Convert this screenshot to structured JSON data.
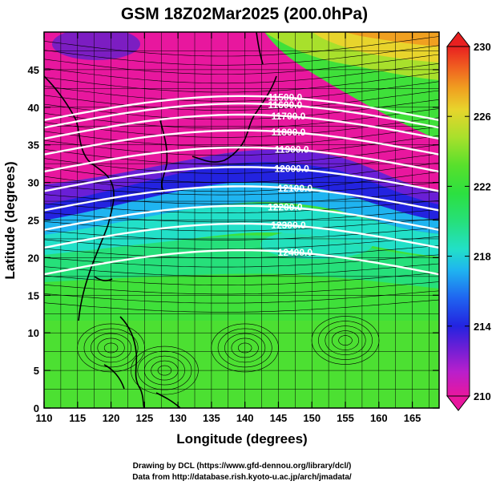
{
  "chart_data": {
    "type": "heatmap",
    "title": "GSM 18Z02Mar2025 (200.0hPa)",
    "xlabel": "Longitude (degrees)",
    "ylabel": "Latitude  (degrees)",
    "xlim": [
      110,
      169
    ],
    "ylim": [
      0,
      50
    ],
    "x_ticks": [
      "110",
      "115",
      "120",
      "125",
      "130",
      "135",
      "140",
      "145",
      "150",
      "155",
      "160",
      "165"
    ],
    "y_ticks": [
      "0",
      "5",
      "10",
      "15",
      "20",
      "25",
      "30",
      "35",
      "40",
      "45"
    ],
    "x_tick_values": [
      110,
      115,
      120,
      125,
      130,
      135,
      140,
      145,
      150,
      155,
      160,
      165
    ],
    "y_tick_values": [
      0,
      5,
      10,
      15,
      20,
      25,
      30,
      35,
      40,
      45
    ],
    "colorbar": {
      "min": 210,
      "max": 230,
      "ticks": [
        "210",
        "214",
        "218",
        "222",
        "226",
        "230"
      ],
      "tick_values": [
        210,
        214,
        218,
        222,
        226,
        230
      ],
      "colors": [
        "#e8179e",
        "#b81fcc",
        "#6a1fd6",
        "#2323e0",
        "#1f64f0",
        "#1fb4f0",
        "#22e0c8",
        "#26e07a",
        "#2ce040",
        "#58e02c",
        "#a8e02c",
        "#e8d42c",
        "#f0a020",
        "#f06020",
        "#e82020"
      ]
    },
    "contours": [
      {
        "label": "11500.0",
        "lon": 146.0,
        "lat": 41.3
      },
      {
        "label": "11600.0",
        "lon": 146.0,
        "lat": 40.3
      },
      {
        "label": "11700.0",
        "lon": 146.5,
        "lat": 38.8
      },
      {
        "label": "11800.0",
        "lon": 146.5,
        "lat": 36.7
      },
      {
        "label": "11900.0",
        "lon": 147.0,
        "lat": 34.4
      },
      {
        "label": "12000.0",
        "lon": 147.0,
        "lat": 31.8
      },
      {
        "label": "12100.0",
        "lon": 147.5,
        "lat": 29.2
      },
      {
        "label": "12200.0",
        "lon": 146.0,
        "lat": 26.7
      },
      {
        "label": "12300.0",
        "lon": 146.5,
        "lat": 24.3
      },
      {
        "label": "12400.0",
        "lon": 147.5,
        "lat": 20.7
      }
    ],
    "field_note": "200 hPa temperature shading (K) with geopotential height contours (m) and wind streamlines"
  },
  "credits": {
    "line1": "Drawing by DCL (https://www.gfd-dennou.org/library/dcl/)",
    "line2": "Data from http://database.rish.kyoto-u.ac.jp/arch/jmadata/"
  }
}
